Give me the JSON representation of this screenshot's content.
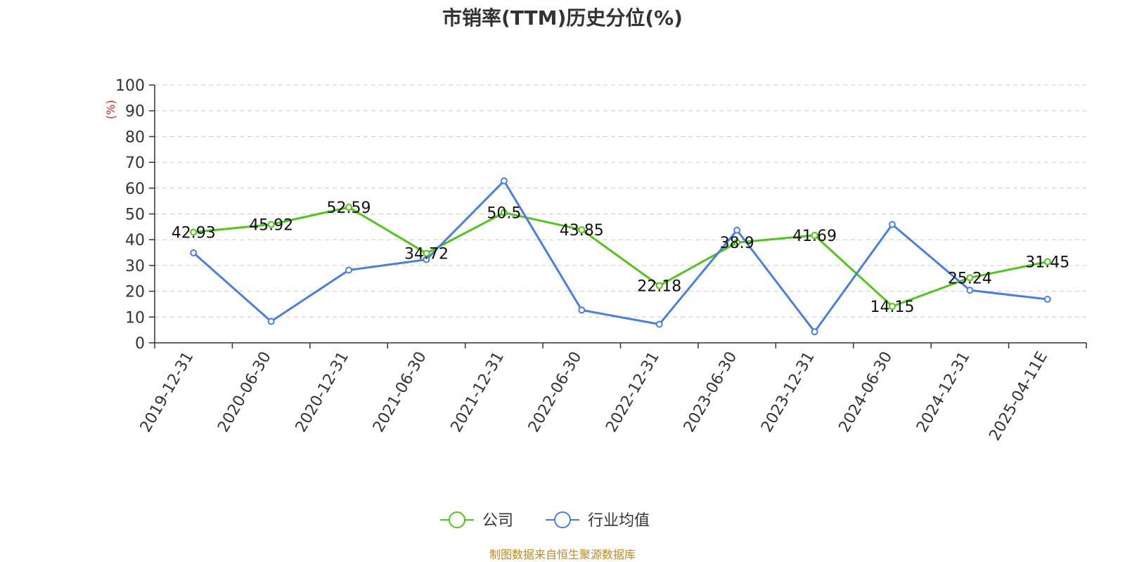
{
  "chart_data": {
    "type": "line",
    "title": "市销率(TTM)历史分位(%)",
    "ylabel": "(%)",
    "ylim": [
      0,
      100
    ],
    "yticks": [
      0,
      10,
      20,
      30,
      40,
      50,
      60,
      70,
      80,
      90,
      100
    ],
    "grid": true,
    "legend_position": "bottom-center",
    "categories": [
      "2019-12-31",
      "2020-06-30",
      "2020-12-31",
      "2021-06-30",
      "2021-12-31",
      "2022-06-30",
      "2022-12-31",
      "2023-06-30",
      "2023-12-31",
      "2024-06-30",
      "2024-12-31",
      "2025-04-11E"
    ],
    "series": [
      {
        "name": "公司",
        "color": "#52c41a",
        "show_labels": true,
        "values": [
          42.93,
          45.92,
          52.59,
          34.72,
          50.5,
          43.85,
          22.18,
          38.9,
          41.69,
          14.15,
          25.24,
          31.45
        ],
        "labels": [
          "42.93",
          "45.92",
          "52.59",
          "34.72",
          "50.5",
          "43.85",
          "22.18",
          "38.9",
          "41.69",
          "14.15",
          "25.24",
          "31.45"
        ]
      },
      {
        "name": "行业均值",
        "color": "#4a7fde",
        "show_labels": false,
        "values": [
          34.9,
          8.3,
          28.2,
          32.3,
          62.8,
          12.7,
          7.2,
          43.7,
          4.3,
          45.9,
          20.4,
          16.9
        ]
      }
    ]
  },
  "source_note": "制图数据来自恒生聚源数据库"
}
